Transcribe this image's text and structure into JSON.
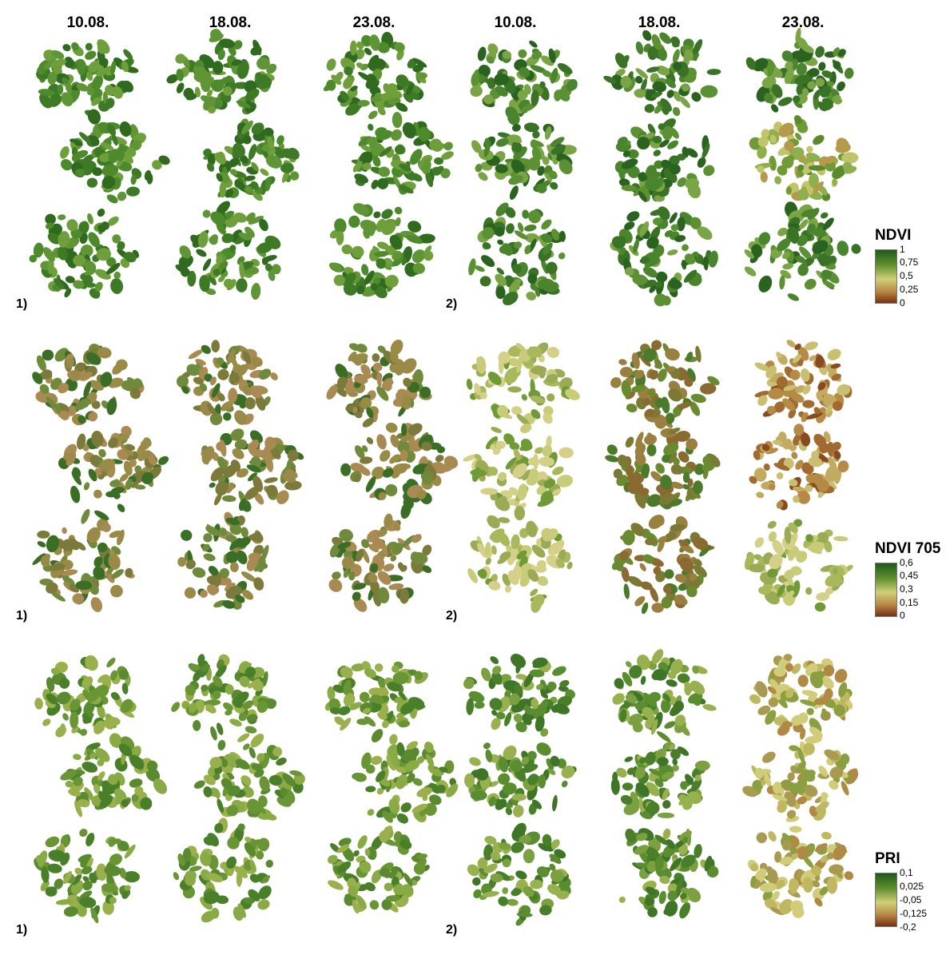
{
  "header": {
    "dates": [
      "10.08.",
      "18.08.",
      "23.08.",
      "10.08.",
      "18.08.",
      "23.08."
    ]
  },
  "group_labels": {
    "one": "1)",
    "two": "2)"
  },
  "legends": [
    {
      "title": "NDVI",
      "ticks": [
        "1",
        "0,75",
        "0,5",
        "0,25",
        "0"
      ]
    },
    {
      "title": "NDVI 705",
      "ticks": [
        "0,6",
        "0,45",
        "0,3",
        "0,15",
        "0"
      ]
    },
    {
      "title": "PRI",
      "ticks": [
        "0,1",
        "0,025",
        "-0,05",
        "-0,125",
        "-0,2"
      ]
    }
  ],
  "colors": {
    "scale_high": "#1e5a1a",
    "scale_upper_mid": "#5f8f2d",
    "scale_mid": "#cfcf7a",
    "scale_lower_mid": "#b88a45",
    "scale_low": "#7a2e12"
  }
}
